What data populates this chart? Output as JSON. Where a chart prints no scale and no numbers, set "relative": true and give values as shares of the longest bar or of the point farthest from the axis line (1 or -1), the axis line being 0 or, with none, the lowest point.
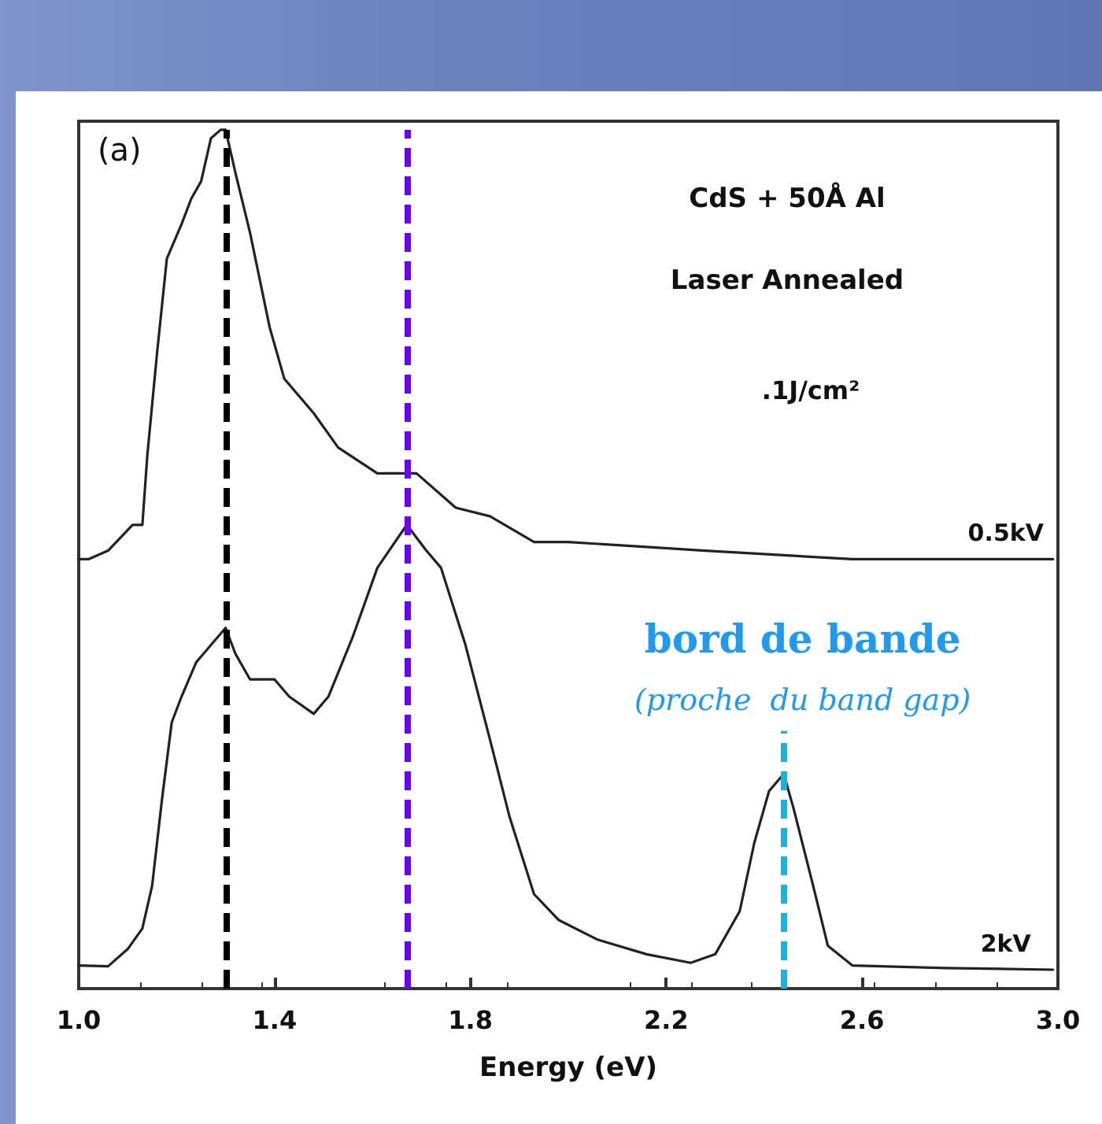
{
  "chart_data": {
    "type": "line",
    "relative": true,
    "xlabel": "Energy (eV)",
    "xlim": [
      1.0,
      3.0
    ],
    "xticks": [
      {
        "value": 1.0,
        "label": "1.0"
      },
      1.4,
      1.8,
      2.2,
      2.6,
      {
        "value": 3.0,
        "label": "3.0"
      }
    ],
    "grid": false,
    "legend": false,
    "marker": "none",
    "line_style": "solid",
    "series": [
      {
        "name": "0.5kV",
        "color": "#222222",
        "x": [
          1.0,
          1.02,
          1.06,
          1.11,
          1.13,
          1.14,
          1.16,
          1.18,
          1.21,
          1.23,
          1.25,
          1.27,
          1.29,
          1.3,
          1.32,
          1.35,
          1.39,
          1.42,
          1.48,
          1.53,
          1.61,
          1.66,
          1.69,
          1.77,
          1.84,
          1.93,
          2.0,
          2.28,
          2.58,
          2.99
        ],
        "values": [
          0.5,
          0.5,
          0.51,
          0.54,
          0.54,
          0.62,
          0.74,
          0.85,
          0.89,
          0.92,
          0.94,
          0.99,
          1.0,
          1.0,
          0.95,
          0.88,
          0.77,
          0.71,
          0.67,
          0.63,
          0.6,
          0.6,
          0.6,
          0.56,
          0.55,
          0.52,
          0.52,
          0.51,
          0.5,
          0.5
        ]
      },
      {
        "name": "2kV",
        "color": "#222222",
        "x": [
          1.0,
          1.06,
          1.1,
          1.13,
          1.15,
          1.17,
          1.19,
          1.21,
          1.24,
          1.27,
          1.3,
          1.32,
          1.35,
          1.4,
          1.43,
          1.48,
          1.51,
          1.56,
          1.61,
          1.67,
          1.71,
          1.74,
          1.79,
          1.84,
          1.88,
          1.93,
          1.98,
          2.06,
          2.16,
          2.25,
          2.3,
          2.35,
          2.38,
          2.41,
          2.44,
          2.46,
          2.5,
          2.53,
          2.58,
          2.77,
          2.99
        ],
        "values": [
          0.027,
          0.026,
          0.046,
          0.07,
          0.12,
          0.22,
          0.31,
          0.34,
          0.38,
          0.4,
          0.42,
          0.39,
          0.36,
          0.36,
          0.34,
          0.32,
          0.34,
          0.41,
          0.49,
          0.54,
          0.51,
          0.49,
          0.4,
          0.29,
          0.2,
          0.11,
          0.08,
          0.057,
          0.04,
          0.03,
          0.04,
          0.09,
          0.17,
          0.23,
          0.25,
          0.21,
          0.12,
          0.05,
          0.027,
          0.024,
          0.022
        ]
      }
    ],
    "ref_lines": [
      {
        "axis": "x",
        "value": 1.3,
        "color": "#000000",
        "line_style": "dashed"
      },
      {
        "axis": "x",
        "value": 1.67,
        "color": "#6a00ff",
        "line_style": "dashed"
      },
      {
        "axis": "x",
        "value": 2.44,
        "color": "#1ab0e0",
        "line_style": "dashed"
      }
    ],
    "annotations": [
      "(a)",
      "CdS + 50Å Al",
      "Laser Annealed",
      ".1J/cm²",
      {
        "text": "bord de bande",
        "x": 2.44,
        "y": 0.3
      },
      {
        "text": "(proche  du band gap)",
        "x": 2.44,
        "y": 0.3
      }
    ]
  }
}
